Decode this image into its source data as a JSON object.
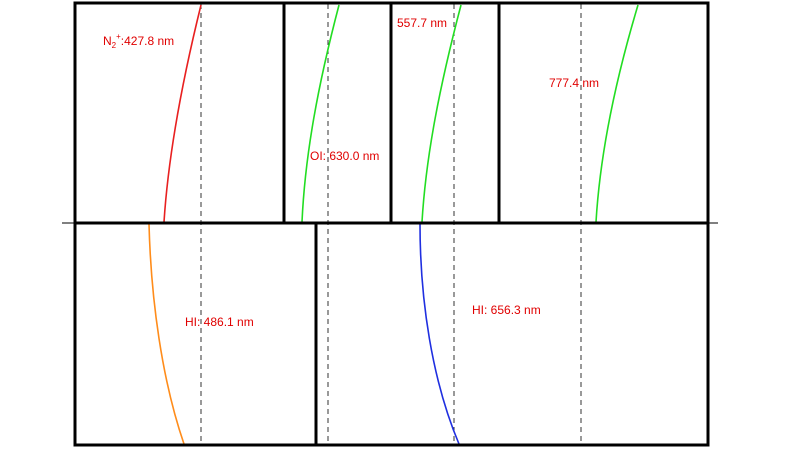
{
  "colors": {
    "label": "#e00000",
    "frame": "#000000",
    "guide": "#333333",
    "n2_curve": "#e82020",
    "oi_curve": "#22dd22",
    "hi_486_curve": "#ff8c1a",
    "hi_656_curve": "#1f2fe0"
  },
  "labels": {
    "n2_species": "N",
    "n2_sub": "2",
    "n2_sup": "+",
    "n2_rest": ":427.8 nm",
    "oi_630": "OI: 630.0 nm",
    "oi_557": "557.7 nm",
    "oi_777": "777.4 nm",
    "hi_486": "HI: 486.1 nm",
    "hi_656": "HI: 656.3 nm"
  }
}
